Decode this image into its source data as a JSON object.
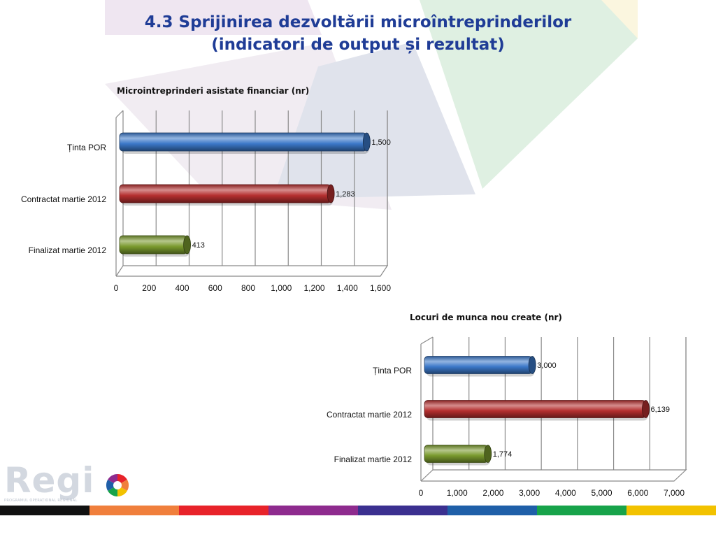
{
  "slide": {
    "title_line1": "4.3 Sprijinirea dezvoltării microîntreprinderilor",
    "title_line2": "(indicatori de output și rezultat)"
  },
  "logo": {
    "text": "Regi",
    "subtitle": "PROGRAMUL OPERAȚIONAL REGIONAL"
  },
  "footer_colors": [
    "#111111",
    "#f07f3c",
    "#e8232a",
    "#8e2b8e",
    "#3b3090",
    "#1f5fa8",
    "#17a34a",
    "#f2c200"
  ],
  "chart_data": [
    {
      "type": "bar",
      "orientation": "horizontal",
      "title": "Microintreprinderi asistate financiar (nr)",
      "categories": [
        "Ținta POR",
        "Contractat martie 2012",
        "Finalizat martie 2012"
      ],
      "values": [
        1500,
        1283,
        413
      ],
      "value_labels": [
        "1,500",
        "1,283",
        "413"
      ],
      "colors": [
        "#3b78c8",
        "#b52f2f",
        "#7a9a2e"
      ],
      "xlim": [
        0,
        1600
      ],
      "xticks": [
        0,
        200,
        400,
        600,
        800,
        1000,
        1200,
        1400,
        1600
      ],
      "xtick_labels": [
        "0",
        "200",
        "400",
        "600",
        "800",
        "1,000",
        "1,200",
        "1,400",
        "1,600"
      ],
      "grid": true
    },
    {
      "type": "bar",
      "orientation": "horizontal",
      "title": "Locuri de  munca nou create (nr)",
      "categories": [
        "Ținta POR",
        "Contractat martie 2012",
        "Finalizat martie 2012"
      ],
      "values": [
        3000,
        6139,
        1774
      ],
      "value_labels": [
        "3,000",
        "6,139",
        "1,774"
      ],
      "colors": [
        "#3b78c8",
        "#b52f2f",
        "#7a9a2e"
      ],
      "xlim": [
        0,
        7000
      ],
      "xticks": [
        0,
        1000,
        2000,
        3000,
        4000,
        5000,
        6000,
        7000
      ],
      "xtick_labels": [
        "0",
        "1,000",
        "2,000",
        "3,000",
        "4,000",
        "5,000",
        "6,000",
        "7,000"
      ],
      "grid": true
    }
  ]
}
